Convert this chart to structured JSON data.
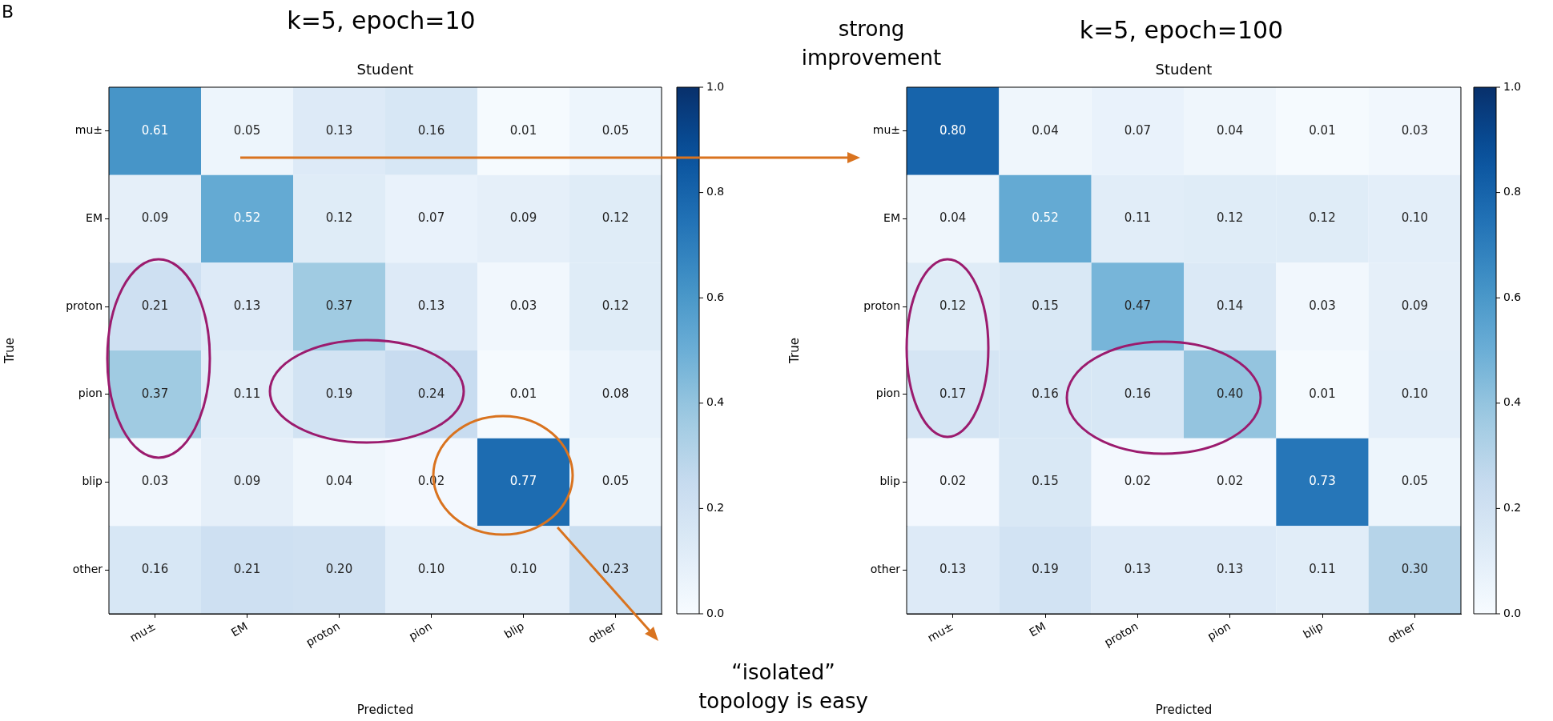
{
  "chart_data": [
    {
      "type": "heatmap",
      "title": "k=5, epoch=10",
      "subtitle": "Student",
      "xlabel": "Predicted",
      "ylabel": "True",
      "annotations": [
        "B",
        "“isolated” topology is easy"
      ],
      "categories": [
        "mu±",
        "EM",
        "proton",
        "pion",
        "blip",
        "other"
      ],
      "y_categories": [
        "mu±",
        "EM",
        "proton",
        "pion",
        "blip",
        "other"
      ],
      "cells": [
        [
          0.61,
          0.05,
          0.13,
          0.16,
          0.01,
          0.05
        ],
        [
          0.09,
          0.52,
          0.12,
          0.07,
          0.09,
          0.12
        ],
        [
          0.21,
          0.13,
          0.37,
          0.13,
          0.03,
          0.12
        ],
        [
          0.37,
          0.11,
          0.19,
          0.24,
          0.01,
          0.08
        ],
        [
          0.03,
          0.09,
          0.04,
          0.02,
          0.77,
          0.05
        ],
        [
          0.16,
          0.21,
          0.2,
          0.1,
          0.1,
          0.23
        ]
      ],
      "cell_labels": [
        [
          "0.61",
          "0.05",
          "0.13",
          "0.16",
          "0.01",
          "0.05"
        ],
        [
          "0.09",
          "0.52",
          "0.12",
          "0.07",
          "0.09",
          "0.12"
        ],
        [
          "0.21",
          "0.13",
          "0.37",
          "0.13",
          "0.03",
          "0.12"
        ],
        [
          "0.37",
          "0.11",
          "0.19",
          "0.24",
          "0.01",
          "0.08"
        ],
        [
          "0.03",
          "0.09",
          "0.04",
          "0.02",
          "0.77",
          "0.05"
        ],
        [
          "0.16",
          "0.21",
          "0.20",
          "0.10",
          "0.10",
          "0.23"
        ]
      ],
      "clim": [
        0,
        1
      ],
      "cticks": [
        {
          "value": 0,
          "label": "0.0"
        },
        {
          "value": 0.2,
          "label": "0.2"
        },
        {
          "value": 0.4,
          "label": "0.4"
        },
        {
          "value": 0.6,
          "label": "0.6"
        },
        {
          "value": 0.8,
          "label": "0.8"
        },
        {
          "value": 1,
          "label": "1.0"
        }
      ]
    },
    {
      "type": "heatmap",
      "title": "k=5, epoch=100",
      "subtitle": "Student",
      "xlabel": "Predicted",
      "ylabel": "True",
      "annotations": [
        "strong improvement"
      ],
      "categories": [
        "mu±",
        "EM",
        "proton",
        "pion",
        "blip",
        "other"
      ],
      "y_categories": [
        "mu±",
        "EM",
        "proton",
        "pion",
        "blip",
        "other"
      ],
      "cells": [
        [
          0.8,
          0.04,
          0.07,
          0.04,
          0.01,
          0.03
        ],
        [
          0.04,
          0.52,
          0.11,
          0.12,
          0.12,
          0.1
        ],
        [
          0.12,
          0.15,
          0.47,
          0.14,
          0.03,
          0.09
        ],
        [
          0.17,
          0.16,
          0.16,
          0.4,
          0.01,
          0.1
        ],
        [
          0.02,
          0.15,
          0.02,
          0.02,
          0.73,
          0.05
        ],
        [
          0.13,
          0.19,
          0.13,
          0.13,
          0.11,
          0.3
        ]
      ],
      "cell_labels": [
        [
          "0.80",
          "0.04",
          "0.07",
          "0.04",
          "0.01",
          "0.03"
        ],
        [
          "0.04",
          "0.52",
          "0.11",
          "0.12",
          "0.12",
          "0.10"
        ],
        [
          "0.12",
          "0.15",
          "0.47",
          "0.14",
          "0.03",
          "0.09"
        ],
        [
          "0.17",
          "0.16",
          "0.16",
          "0.40",
          "0.01",
          "0.10"
        ],
        [
          "0.02",
          "0.15",
          "0.02",
          "0.02",
          "0.73",
          "0.05"
        ],
        [
          "0.13",
          "0.19",
          "0.13",
          "0.13",
          "0.11",
          "0.30"
        ]
      ],
      "clim": [
        0,
        1
      ],
      "cticks": [
        {
          "value": 0,
          "label": "0.0"
        },
        {
          "value": 0.2,
          "label": "0.2"
        },
        {
          "value": 0.4,
          "label": "0.4"
        },
        {
          "value": 0.6,
          "label": "0.6"
        },
        {
          "value": 0.8,
          "label": "0.8"
        },
        {
          "value": 1,
          "label": "1.0"
        }
      ]
    }
  ]
}
